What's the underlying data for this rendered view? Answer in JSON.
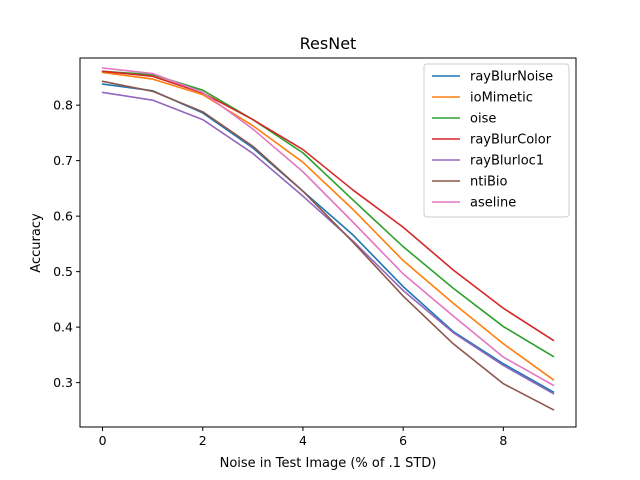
{
  "chart_data": {
    "type": "line",
    "title": "ResNet",
    "xlabel": "Noise in Test Image (% of .1 STD)",
    "ylabel": "Accuracy",
    "xlim": [
      -0.45,
      9.45
    ],
    "ylim": [
      0.22,
      0.885
    ],
    "xticks": [
      0,
      2,
      4,
      6,
      8
    ],
    "yticks": [
      0.3,
      0.4,
      0.5,
      0.6,
      0.7,
      0.8
    ],
    "ytick_labels": [
      "0.3",
      "0.4",
      "0.5",
      "0.6",
      "0.7",
      "0.8"
    ],
    "grid": false,
    "legend_position": "top-right",
    "x": [
      0,
      1,
      2,
      3,
      4,
      5,
      6,
      7,
      8,
      9
    ],
    "series": [
      {
        "name": "rayBlurNoise",
        "color": "#1f77b4",
        "values": [
          0.838,
          0.826,
          0.786,
          0.723,
          0.645,
          0.566,
          0.473,
          0.392,
          0.334,
          0.283
        ]
      },
      {
        "name": "ioMimetic",
        "color": "#ff7f0e",
        "values": [
          0.859,
          0.847,
          0.819,
          0.763,
          0.697,
          0.612,
          0.52,
          0.443,
          0.37,
          0.305
        ]
      },
      {
        "name": "oise",
        "color": "#2ca02c",
        "values": [
          0.861,
          0.855,
          0.827,
          0.774,
          0.714,
          0.629,
          0.545,
          0.47,
          0.401,
          0.347
        ]
      },
      {
        "name": "rayBlurColor",
        "color": "#d62728",
        "values": [
          0.861,
          0.852,
          0.822,
          0.774,
          0.72,
          0.647,
          0.58,
          0.503,
          0.434,
          0.376
        ]
      },
      {
        "name": "rayBlurloc1",
        "color": "#9467bd",
        "values": [
          0.823,
          0.809,
          0.774,
          0.713,
          0.636,
          0.555,
          0.466,
          0.39,
          0.331,
          0.28
        ]
      },
      {
        "name": "ntiBio",
        "color": "#8c564b",
        "values": [
          0.843,
          0.825,
          0.788,
          0.726,
          0.645,
          0.553,
          0.456,
          0.37,
          0.298,
          0.251
        ]
      },
      {
        "name": "aseline",
        "color": "#e377c2",
        "values": [
          0.867,
          0.857,
          0.823,
          0.757,
          0.68,
          0.589,
          0.496,
          0.42,
          0.346,
          0.295
        ]
      }
    ]
  }
}
